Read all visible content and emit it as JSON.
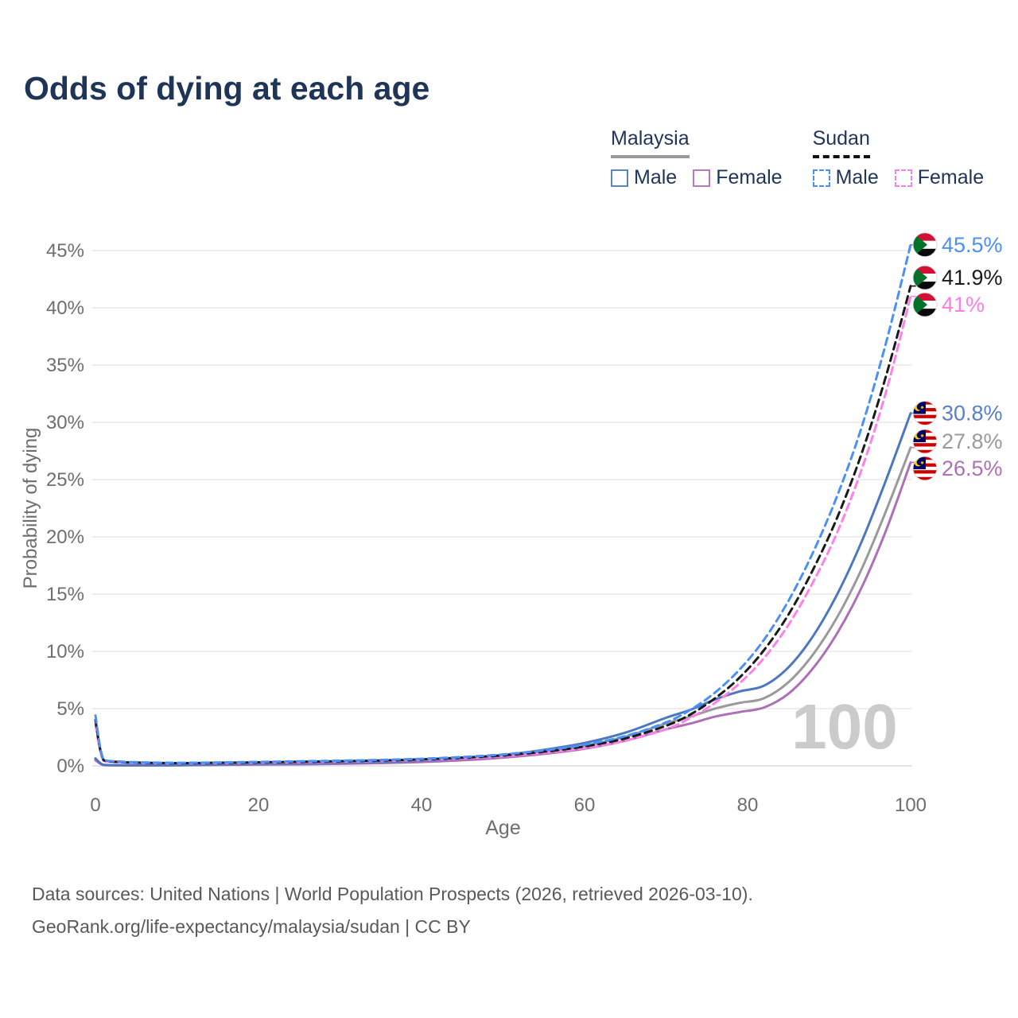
{
  "page": {
    "title": "Odds of dying at each age"
  },
  "legend": {
    "groups": [
      {
        "label": "Malaysia",
        "line_style": "solid",
        "underline_color": "#9a9a9a",
        "items": [
          {
            "label": "Male",
            "color": "#5b82c4"
          },
          {
            "label": "Female",
            "color": "#bd77bf"
          }
        ]
      },
      {
        "label": "Sudan",
        "line_style": "dashed",
        "underline_color": "#111111",
        "items": [
          {
            "label": "Male",
            "color": "#4a90f7"
          },
          {
            "label": "Female",
            "color": "#ff80e8"
          }
        ]
      }
    ]
  },
  "chart_data": {
    "type": "line",
    "title": "Odds of dying at each age",
    "xlabel": "Age",
    "ylabel": "Probability of dying",
    "xlim": [
      0,
      100
    ],
    "ylim": [
      0,
      47
    ],
    "x_ticks": [
      0,
      20,
      40,
      60,
      80,
      100
    ],
    "y_ticks": [
      0,
      5,
      10,
      15,
      20,
      25,
      30,
      35,
      40,
      45
    ],
    "y_tick_suffix": "%",
    "grid": "horizontal",
    "legend_position": "top-right",
    "watermark": "100",
    "x": [
      0,
      1,
      3,
      5,
      10,
      15,
      20,
      25,
      30,
      35,
      40,
      45,
      50,
      55,
      60,
      65,
      70,
      73,
      76,
      79,
      82,
      85,
      88,
      91,
      94,
      97,
      100
    ],
    "series": [
      {
        "name": "Malaysia All",
        "country": "malaysia",
        "color": "#9a9a9a",
        "dashed": false,
        "end_label": "27.8%",
        "end_value": 27.8,
        "label_color": "#9a9a9a",
        "values": [
          0.58,
          0.08,
          0.05,
          0.045,
          0.055,
          0.1,
          0.15,
          0.18,
          0.22,
          0.29,
          0.4,
          0.57,
          0.83,
          1.22,
          1.75,
          2.55,
          3.7,
          4.3,
          5.0,
          5.5,
          5.9,
          7.3,
          9.7,
          13.0,
          17.2,
          22.3,
          27.8
        ]
      },
      {
        "name": "Malaysia Female",
        "country": "malaysia",
        "color": "#ad6fb5",
        "dashed": false,
        "end_label": "26.5%",
        "end_value": 26.5,
        "label_color": "#ad6fb5",
        "values": [
          0.5,
          0.07,
          0.045,
          0.04,
          0.05,
          0.08,
          0.11,
          0.14,
          0.18,
          0.24,
          0.34,
          0.49,
          0.72,
          1.05,
          1.5,
          2.2,
          3.2,
          3.7,
          4.3,
          4.7,
          5.1,
          6.3,
          8.5,
          11.6,
          15.6,
          20.6,
          26.5
        ]
      },
      {
        "name": "Malaysia Male",
        "country": "malaysia",
        "color": "#4d78c0",
        "dashed": false,
        "end_label": "30.8%",
        "end_value": 30.8,
        "label_color": "#5b7fc7",
        "values": [
          0.65,
          0.09,
          0.06,
          0.05,
          0.06,
          0.12,
          0.18,
          0.22,
          0.27,
          0.34,
          0.46,
          0.65,
          0.95,
          1.4,
          2.0,
          2.9,
          4.2,
          4.9,
          5.8,
          6.5,
          7.0,
          8.6,
          11.3,
          15.0,
          19.6,
          25.0,
          30.8
        ]
      },
      {
        "name": "Sudan Female",
        "country": "sudan",
        "color": "#ff80e8",
        "dashed": true,
        "end_label": "41%",
        "end_value": 41.0,
        "label_color": "#ff7ce8",
        "values": [
          3.6,
          0.45,
          0.31,
          0.26,
          0.22,
          0.24,
          0.28,
          0.32,
          0.37,
          0.43,
          0.52,
          0.66,
          0.85,
          1.14,
          1.56,
          2.2,
          3.2,
          4.2,
          5.5,
          7.2,
          9.4,
          12.3,
          16.0,
          20.4,
          25.9,
          32.7,
          41.0
        ]
      },
      {
        "name": "Sudan All",
        "country": "sudan",
        "color": "#1a1a1a",
        "dashed": true,
        "end_label": "41.9%",
        "end_value": 41.9,
        "label_color": "#1a1a1a",
        "values": [
          4.0,
          0.5,
          0.34,
          0.29,
          0.24,
          0.27,
          0.31,
          0.36,
          0.41,
          0.47,
          0.57,
          0.72,
          0.92,
          1.24,
          1.7,
          2.4,
          3.5,
          4.5,
          5.9,
          7.7,
          10.1,
          13.2,
          17.1,
          21.7,
          27.3,
          34.1,
          41.9
        ]
      },
      {
        "name": "Sudan Male",
        "country": "sudan",
        "color": "#4a90f7",
        "dashed": true,
        "end_label": "45.5%",
        "end_value": 45.5,
        "label_color": "#4a90f7",
        "values": [
          4.4,
          0.55,
          0.38,
          0.32,
          0.27,
          0.3,
          0.35,
          0.4,
          0.45,
          0.52,
          0.62,
          0.78,
          1.0,
          1.35,
          1.85,
          2.6,
          3.8,
          4.9,
          6.4,
          8.4,
          11.0,
          14.4,
          18.6,
          23.6,
          29.6,
          37.0,
          45.5
        ]
      }
    ]
  },
  "footer": {
    "line1": "Data sources: United Nations | World Population Prospects (2026, retrieved 2026-03-10).",
    "line2": "GeoRank.org/life-expectancy/malaysia/sudan | CC BY"
  }
}
